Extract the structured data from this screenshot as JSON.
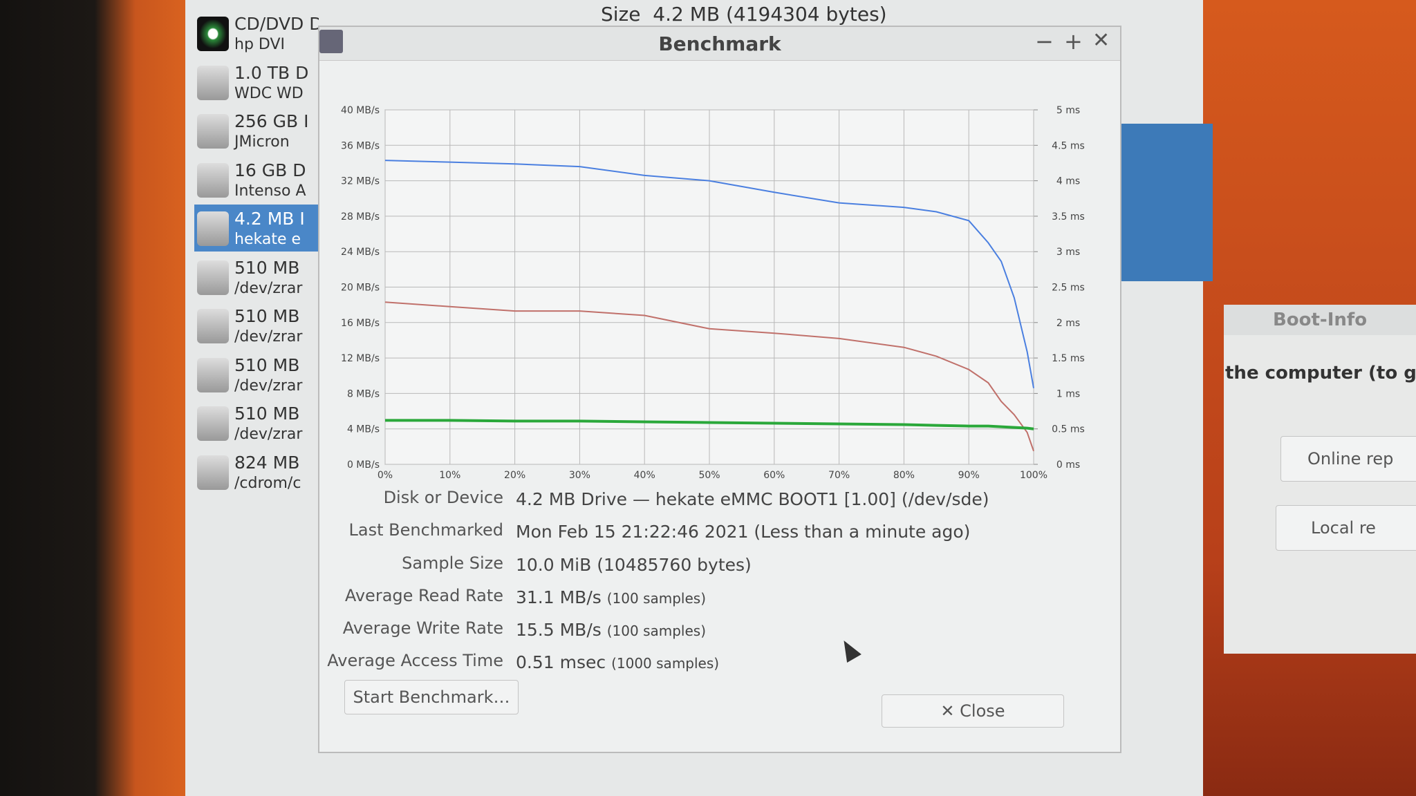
{
  "window": {
    "size_label": "Size",
    "size_value": "4.2 MB (4194304 bytes)"
  },
  "sidebar": [
    {
      "title": "CD/DVD Drive",
      "subtitle": "hp    DVI"
    },
    {
      "title": "1.0 TB D",
      "subtitle": "WDC WD"
    },
    {
      "title": "256 GB I",
      "subtitle": "JMicron"
    },
    {
      "title": "16 GB D",
      "subtitle": "Intenso A"
    },
    {
      "title": "4.2 MB I",
      "subtitle": "hekate e"
    },
    {
      "title": "510 MB",
      "subtitle": "/dev/zrar"
    },
    {
      "title": "510 MB",
      "subtitle": "/dev/zrar"
    },
    {
      "title": "510 MB",
      "subtitle": "/dev/zrar"
    },
    {
      "title": "510 MB",
      "subtitle": "/dev/zrar"
    },
    {
      "title": "824 MB",
      "subtitle": "/cdrom/c"
    }
  ],
  "dialog": {
    "title": "Benchmark",
    "info": [
      {
        "label": "Disk or Device",
        "value": "4.2 MB Drive — hekate eMMC BOOT1 [1.00] (/dev/sde)"
      },
      {
        "label": "Last Benchmarked",
        "value": "Mon Feb 15 21:22:46 2021 (Less than a minute ago)"
      },
      {
        "label": "Sample Size",
        "value": "10.0 MiB (10485760 bytes)"
      },
      {
        "label": "Average Read Rate",
        "value": "31.1 MB/s",
        "note": "(100 samples)"
      },
      {
        "label": "Average Write Rate",
        "value": "15.5 MB/s",
        "note": "(100 samples)"
      },
      {
        "label": "Average Access Time",
        "value": "0.51 msec",
        "note": "(1000 samples)"
      }
    ],
    "start_button": "Start Benchmark…",
    "close_button": "Close"
  },
  "chart_data": {
    "type": "line",
    "x": [
      0,
      10,
      20,
      30,
      40,
      50,
      60,
      70,
      80,
      85,
      90,
      93,
      95,
      97,
      99,
      100
    ],
    "xlim": [
      0,
      100
    ],
    "xticks": [
      {
        "value": 0,
        "label": "0%"
      },
      {
        "value": 10,
        "label": "10%"
      },
      {
        "value": 20,
        "label": "20%"
      },
      {
        "value": 30,
        "label": "30%"
      },
      {
        "value": 40,
        "label": "40%"
      },
      {
        "value": 50,
        "label": "50%"
      },
      {
        "value": 60,
        "label": "60%"
      },
      {
        "value": 70,
        "label": "70%"
      },
      {
        "value": 80,
        "label": "80%"
      },
      {
        "value": 90,
        "label": "90%"
      },
      {
        "value": 100,
        "label": "100%"
      }
    ],
    "ylim": [
      0,
      40
    ],
    "yticks": [
      {
        "value": 0,
        "label": "0 MB/s"
      },
      {
        "value": 4,
        "label": "4 MB/s"
      },
      {
        "value": 8,
        "label": "8 MB/s"
      },
      {
        "value": 12,
        "label": "12 MB/s"
      },
      {
        "value": 16,
        "label": "16 MB/s"
      },
      {
        "value": 20,
        "label": "20 MB/s"
      },
      {
        "value": 24,
        "label": "24 MB/s"
      },
      {
        "value": 28,
        "label": "28 MB/s"
      },
      {
        "value": 32,
        "label": "32 MB/s"
      },
      {
        "value": 36,
        "label": "36 MB/s"
      },
      {
        "value": 40,
        "label": "40 MB/s"
      }
    ],
    "y2lim": [
      0,
      5
    ],
    "y2ticks": [
      {
        "value": 0,
        "label": "0 ms"
      },
      {
        "value": 0.5,
        "label": "0.5 ms"
      },
      {
        "value": 1,
        "label": "1 ms"
      },
      {
        "value": 1.5,
        "label": "1.5 ms"
      },
      {
        "value": 2,
        "label": "2 ms"
      },
      {
        "value": 2.5,
        "label": "2.5 ms"
      },
      {
        "value": 3,
        "label": "3 ms"
      },
      {
        "value": 3.5,
        "label": "3.5 ms"
      },
      {
        "value": 4,
        "label": "4 ms"
      },
      {
        "value": 4.5,
        "label": "4.5 ms"
      },
      {
        "value": 5,
        "label": "5 ms"
      }
    ],
    "grid": true,
    "series": [
      {
        "color": "#4a7fe0",
        "values": [
          34.3,
          34.1,
          33.9,
          33.6,
          32.6,
          32.0,
          30.7,
          29.5,
          29.0,
          28.5,
          27.5,
          25,
          22.9,
          18.8,
          12.7,
          8.6
        ]
      },
      {
        "color": "#c0706a",
        "values": [
          18.3,
          17.8,
          17.3,
          17.3,
          16.8,
          15.3,
          14.8,
          14.2,
          13.2,
          12.2,
          10.7,
          9.2,
          7.1,
          5.6,
          3.6,
          1.5
        ]
      },
      {
        "color": "#2aa83a",
        "axis": "y2",
        "values": [
          0.62,
          0.62,
          0.61,
          0.61,
          0.6,
          0.59,
          0.58,
          0.57,
          0.56,
          0.55,
          0.54,
          0.54,
          0.53,
          0.52,
          0.51,
          0.5
        ]
      }
    ]
  },
  "side_panel": {
    "title": "Boot-Info",
    "text": "the computer (to get",
    "buttons": [
      "Online rep",
      "Local re"
    ]
  }
}
